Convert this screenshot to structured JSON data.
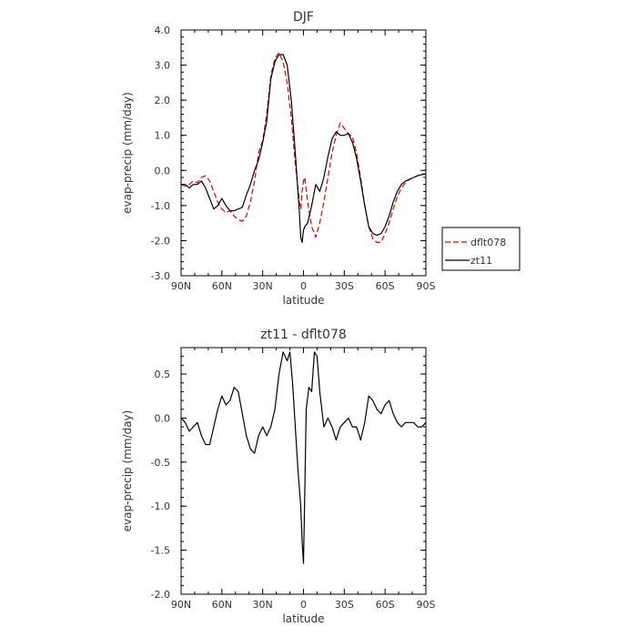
{
  "chart_data": [
    {
      "type": "line",
      "title": "DJF",
      "xlabel": "latitude",
      "ylabel": "evap-precip (mm/day)",
      "xlim": [
        90,
        -90
      ],
      "ylim": [
        -3.0,
        4.0
      ],
      "xticks": [
        90,
        60,
        30,
        0,
        -30,
        -60,
        -90
      ],
      "xtick_labels": [
        "90N",
        "60N",
        "30N",
        "0",
        "30S",
        "60S",
        "90S"
      ],
      "yticks": [
        -3.0,
        -2.0,
        -1.0,
        0.0,
        1.0,
        2.0,
        3.0,
        4.0
      ],
      "ytick_labels": [
        "-3.0",
        "-2.0",
        "-1.0",
        "0.0",
        "1.0",
        "2.0",
        "3.0",
        "4.0"
      ],
      "legend_position": "right",
      "series": [
        {
          "name": "dflt078",
          "color": "#e60000",
          "style": "dashed",
          "x": [
            90,
            87,
            84,
            81,
            78,
            75,
            72,
            69,
            66,
            63,
            60,
            57,
            54,
            51,
            48,
            45,
            42,
            39,
            36,
            33,
            30,
            27,
            24,
            21,
            18,
            15,
            12,
            9,
            6,
            3,
            2,
            1,
            0,
            -1,
            -3,
            -6,
            -9,
            -12,
            -15,
            -18,
            -21,
            -24,
            -27,
            -30,
            -33,
            -36,
            -39,
            -42,
            -45,
            -48,
            -51,
            -54,
            -57,
            -60,
            -63,
            -66,
            -69,
            -72,
            -75,
            -78,
            -81,
            -84,
            -87,
            -90
          ],
          "y": [
            -0.4,
            -0.45,
            -0.4,
            -0.3,
            -0.35,
            -0.2,
            -0.15,
            -0.3,
            -0.6,
            -0.9,
            -1.1,
            -1.2,
            -1.15,
            -1.3,
            -1.4,
            -1.45,
            -1.3,
            -0.9,
            -0.3,
            0.5,
            0.85,
            1.6,
            2.7,
            3.2,
            3.35,
            3.1,
            2.5,
            1.5,
            0.2,
            -0.9,
            -1.1,
            -0.6,
            -0.3,
            -0.2,
            -0.9,
            -1.6,
            -1.9,
            -1.5,
            -0.9,
            -0.2,
            0.5,
            1.0,
            1.35,
            1.2,
            1.05,
            0.95,
            0.5,
            -0.2,
            -1.0,
            -1.6,
            -1.95,
            -2.05,
            -2.05,
            -1.8,
            -1.5,
            -1.1,
            -0.75,
            -0.5,
            -0.35,
            -0.25,
            -0.2,
            -0.15,
            -0.1,
            -0.1
          ]
        },
        {
          "name": "zt11",
          "color": "#000000",
          "style": "solid",
          "x": [
            90,
            87,
            84,
            81,
            78,
            75,
            72,
            69,
            66,
            63,
            60,
            57,
            54,
            51,
            48,
            45,
            42,
            39,
            36,
            33,
            30,
            27,
            24,
            21,
            18,
            15,
            12,
            9,
            6,
            3,
            2,
            1,
            0,
            -1,
            -3,
            -6,
            -9,
            -12,
            -15,
            -18,
            -21,
            -24,
            -27,
            -30,
            -33,
            -36,
            -39,
            -42,
            -45,
            -48,
            -51,
            -54,
            -57,
            -60,
            -63,
            -66,
            -69,
            -72,
            -75,
            -78,
            -81,
            -84,
            -87,
            -90
          ],
          "y": [
            -0.4,
            -0.4,
            -0.5,
            -0.4,
            -0.4,
            -0.3,
            -0.5,
            -0.8,
            -1.1,
            -1.0,
            -0.8,
            -1.0,
            -1.15,
            -1.15,
            -1.1,
            -1.05,
            -0.7,
            -0.4,
            0.0,
            0.3,
            0.8,
            1.4,
            2.6,
            3.1,
            3.3,
            3.3,
            3.0,
            2.0,
            0.5,
            -1.2,
            -1.9,
            -2.05,
            -1.7,
            -1.6,
            -1.5,
            -1.0,
            -0.4,
            -0.6,
            -0.2,
            0.4,
            0.9,
            1.1,
            1.0,
            1.0,
            1.05,
            0.8,
            0.35,
            -0.3,
            -1.0,
            -1.6,
            -1.8,
            -1.85,
            -1.8,
            -1.6,
            -1.3,
            -0.9,
            -0.6,
            -0.4,
            -0.3,
            -0.25,
            -0.2,
            -0.15,
            -0.12,
            -0.1
          ]
        }
      ]
    },
    {
      "type": "line",
      "title": "zt11 - dflt078",
      "xlabel": "latitude",
      "ylabel": "evap-precip (mm/day)",
      "xlim": [
        90,
        -90
      ],
      "ylim": [
        -2.0,
        0.8
      ],
      "xticks": [
        90,
        60,
        30,
        0,
        -30,
        -60,
        -90
      ],
      "xtick_labels": [
        "90N",
        "60N",
        "30N",
        "0",
        "30S",
        "60S",
        "90S"
      ],
      "yticks": [
        -2.0,
        -1.5,
        -1.0,
        -0.5,
        0.0,
        0.5
      ],
      "ytick_labels": [
        "-2.0",
        "-1.5",
        "-1.0",
        "-0.5",
        "0.0",
        "0.5"
      ],
      "series": [
        {
          "color": "#000000",
          "style": "solid",
          "x": [
            90,
            87,
            84,
            81,
            78,
            75,
            72,
            69,
            66,
            63,
            60,
            57,
            54,
            51,
            48,
            45,
            42,
            39,
            36,
            33,
            30,
            27,
            24,
            21,
            18,
            15,
            12,
            10,
            8,
            6,
            4,
            2,
            1,
            0,
            -1,
            -2,
            -4,
            -6,
            -8,
            -10,
            -12,
            -15,
            -18,
            -21,
            -24,
            -27,
            -30,
            -33,
            -36,
            -39,
            -42,
            -45,
            -48,
            -51,
            -54,
            -57,
            -60,
            -63,
            -66,
            -69,
            -72,
            -75,
            -78,
            -81,
            -84,
            -87,
            -90
          ],
          "y": [
            0.0,
            -0.05,
            -0.15,
            -0.1,
            -0.05,
            -0.2,
            -0.3,
            -0.3,
            -0.1,
            0.1,
            0.25,
            0.15,
            0.2,
            0.35,
            0.3,
            0.05,
            -0.2,
            -0.35,
            -0.4,
            -0.2,
            -0.1,
            -0.2,
            -0.1,
            0.1,
            0.5,
            0.75,
            0.65,
            0.75,
            0.4,
            -0.1,
            -0.6,
            -1.0,
            -1.4,
            -1.65,
            -0.8,
            0.1,
            0.35,
            0.3,
            0.75,
            0.7,
            0.3,
            -0.1,
            0.0,
            -0.1,
            -0.25,
            -0.1,
            -0.05,
            0.0,
            -0.1,
            -0.1,
            -0.25,
            -0.05,
            0.25,
            0.2,
            0.1,
            0.05,
            0.15,
            0.2,
            0.05,
            -0.05,
            -0.1,
            -0.05,
            -0.05,
            -0.05,
            -0.1,
            -0.1,
            -0.05
          ]
        }
      ]
    }
  ]
}
